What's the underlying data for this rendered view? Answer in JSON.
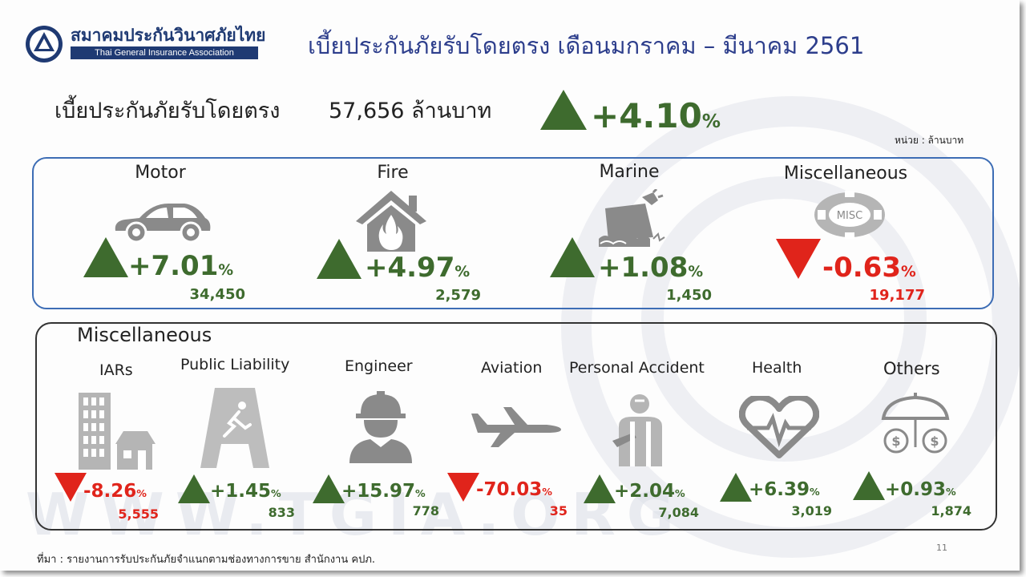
{
  "header": {
    "logo_th": "สมาคมประกันวินาศภัยไทย",
    "logo_en": "Thai General Insurance Association",
    "title": "เบี้ยประกันภัยรับโดยตรง เดือนมกราคม – มีนาคม 2561"
  },
  "summary": {
    "label": "เบี้ยประกันภัยรับโดยตรง",
    "value": "57,656 ล้านบาท",
    "change": "+4.10",
    "change_unit": "%",
    "trend": "up",
    "unit_note": "หน่วย : ล้านบาท"
  },
  "main_categories": [
    {
      "name": "Motor",
      "change": "+7.01",
      "unit": "%",
      "value": "34,450",
      "trend": "up",
      "icon": "car-icon"
    },
    {
      "name": "Fire",
      "change": "+4.97",
      "unit": "%",
      "value": "2,579",
      "trend": "up",
      "icon": "house-fire-icon"
    },
    {
      "name": "Marine",
      "change": "+1.08",
      "unit": "%",
      "value": "1,450",
      "trend": "up",
      "icon": "ship-icon"
    },
    {
      "name": "Miscellaneous",
      "change": "-0.63",
      "unit": "%",
      "value": "19,177",
      "trend": "down",
      "icon": "lifebuoy-icon",
      "icon_label": "MISC"
    }
  ],
  "misc_section": {
    "title": "Miscellaneous",
    "items": [
      {
        "name": "IARs",
        "change": "-8.26",
        "unit": "%",
        "value": "5,555",
        "trend": "down",
        "icon": "buildings-icon"
      },
      {
        "name": "Public Liability",
        "change": "+1.45",
        "unit": "%",
        "value": "833",
        "trend": "up",
        "icon": "wet-floor-sign-icon"
      },
      {
        "name": "Engineer",
        "change": "+15.97",
        "unit": "%",
        "value": "778",
        "trend": "up",
        "icon": "engineer-helmet-icon"
      },
      {
        "name": "Aviation",
        "change": "-70.03",
        "unit": "%",
        "value": "35",
        "trend": "down",
        "icon": "airplane-icon"
      },
      {
        "name": "Personal Accident",
        "change": "+2.04",
        "unit": "%",
        "value": "7,084",
        "trend": "up",
        "icon": "injured-person-icon"
      },
      {
        "name": "Health",
        "change": "+6.39",
        "unit": "%",
        "value": "3,019",
        "trend": "up",
        "icon": "heartbeat-icon"
      },
      {
        "name": "Others",
        "change": "+0.93",
        "unit": "%",
        "value": "1,874",
        "trend": "up",
        "icon": "umbrella-money-icon"
      }
    ]
  },
  "footer": {
    "source": "ที่มา : รายงานการรับประกันภัยจำแนกตามช่องทางการขาย สำนักงาน คปภ.",
    "page_number": "11",
    "watermark": "WWW.TGIA.ORG"
  },
  "colors": {
    "up": "#3e6b2e",
    "down": "#e0241b",
    "title": "#2d3e8c",
    "brand": "#1f3a73",
    "box_top": "#3d6db5"
  }
}
